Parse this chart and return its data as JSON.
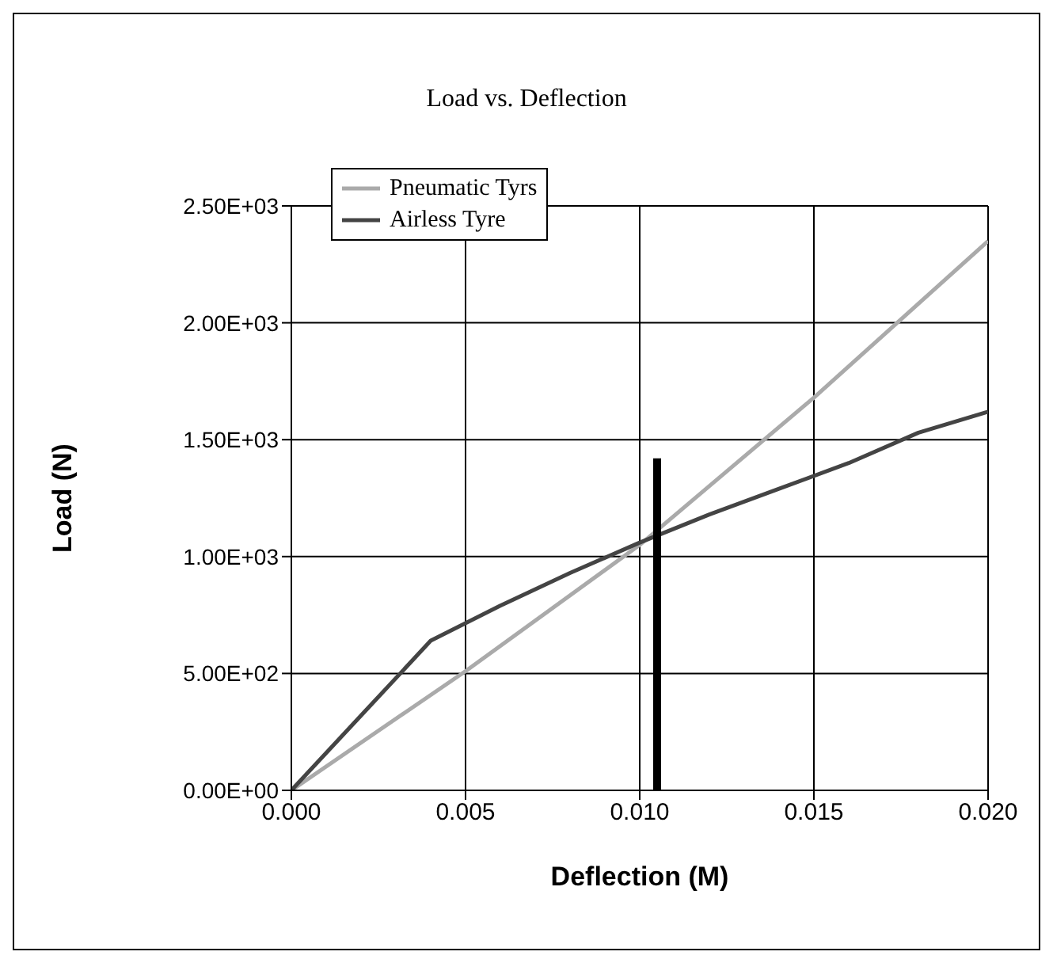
{
  "chart_data": {
    "type": "line",
    "title": "Load vs. Deflection",
    "xlabel": "Deflection (M)",
    "ylabel": "Load (N)",
    "xlim": [
      0,
      0.02
    ],
    "xticks": [
      {
        "value": 0,
        "label": "0.000"
      },
      {
        "value": 0.005,
        "label": "0.005"
      },
      {
        "value": 0.01,
        "label": "0.010"
      },
      {
        "value": 0.015,
        "label": "0.015"
      },
      {
        "value": 0.02,
        "label": "0.020"
      }
    ],
    "ylim": [
      0,
      2500
    ],
    "yticks": [
      {
        "value": 0,
        "label": "0.00E+00"
      },
      {
        "value": 500,
        "label": "5.00E+02"
      },
      {
        "value": 1000,
        "label": "1.00E+03"
      },
      {
        "value": 1500,
        "label": "1.50E+03"
      },
      {
        "value": 2000,
        "label": "2.00E+03"
      },
      {
        "value": 2500,
        "label": "2.50E+03"
      }
    ],
    "grid": true,
    "legend": "top left",
    "marker": "none",
    "series": [
      {
        "name": "Pneumatic Tyrs",
        "color": "#aaaaaa",
        "x": [
          0,
          0.005,
          0.01,
          0.015,
          0.02
        ],
        "values": [
          0,
          510,
          1050,
          1680,
          2350
        ]
      },
      {
        "name": "Airless Tyre",
        "color": "#444444",
        "x": [
          0,
          0.002,
          0.004,
          0.006,
          0.008,
          0.01,
          0.012,
          0.014,
          0.016,
          0.018,
          0.02
        ],
        "values": [
          0,
          320,
          640,
          790,
          930,
          1060,
          1180,
          1290,
          1400,
          1530,
          1620
        ]
      },
      {
        "color": "#000000",
        "x": [
          0.0105,
          0.0105
        ],
        "values": [
          0,
          1420
        ]
      }
    ]
  }
}
